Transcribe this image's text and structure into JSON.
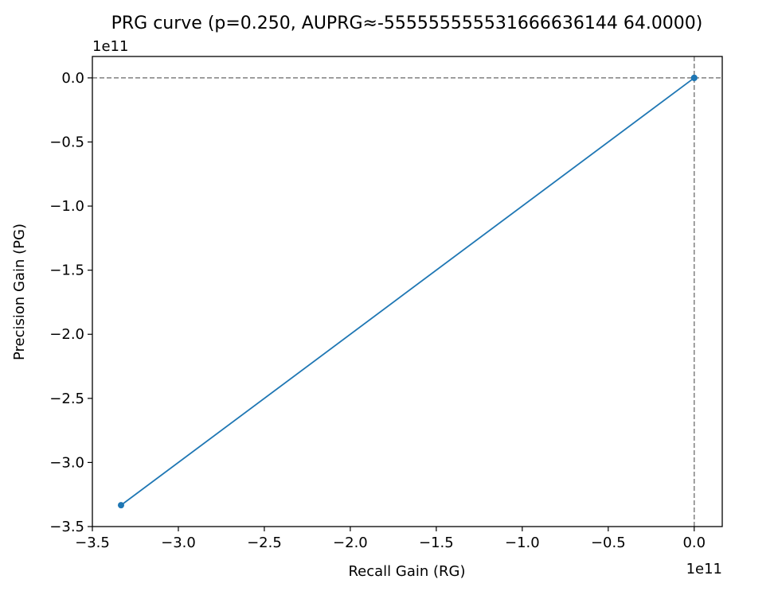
{
  "chart_data": {
    "type": "line",
    "title": "PRG curve (p=0.250, AUPRG≈-555555555531666636144 64.0000)",
    "xlabel": "Recall Gain (RG)",
    "ylabel": "Precision Gain (PG)",
    "x_offset_label": "1e11",
    "y_offset_label": "1e11",
    "scale": 100000000000,
    "xlim": [
      -3.5,
      0.163
    ],
    "ylim": [
      -3.5,
      0.167
    ],
    "xticks": [
      -3.5,
      -3.0,
      -2.5,
      -2.0,
      -1.5,
      -1.0,
      -0.5,
      0.0
    ],
    "xtick_labels": [
      "−3.5",
      "−3.0",
      "−2.5",
      "−2.0",
      "−1.5",
      "−1.0",
      "−0.5",
      "0.0"
    ],
    "yticks": [
      -3.5,
      -3.0,
      -2.5,
      -2.0,
      -1.5,
      -1.0,
      -0.5,
      0.0
    ],
    "ytick_labels": [
      "−3.5",
      "−3.0",
      "−2.5",
      "−2.0",
      "−1.5",
      "−1.0",
      "−0.5",
      "0.0"
    ],
    "reference_lines": {
      "x": 0.0,
      "y": 0.0,
      "style": "dashed",
      "color": "#808080"
    },
    "grid": false,
    "series": [
      {
        "color": "#1f77b4",
        "marker": "circle",
        "x": [
          -3.3333,
          0.0,
          0.0,
          0.0
        ],
        "y": [
          -3.3333,
          0.0,
          0.0,
          0.0
        ]
      }
    ]
  }
}
